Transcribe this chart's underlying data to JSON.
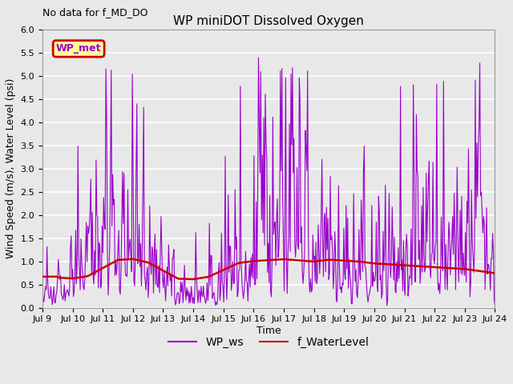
{
  "title": "WP miniDOT Dissolved Oxygen",
  "top_left_text": "No data for f_MD_DO",
  "ylabel": "Wind Speed (m/s), Water Level (psi)",
  "xlabel": "Time",
  "ylim": [
    0.0,
    6.0
  ],
  "yticks": [
    0.0,
    0.5,
    1.0,
    1.5,
    2.0,
    2.5,
    3.0,
    3.5,
    4.0,
    4.5,
    5.0,
    5.5,
    6.0
  ],
  "xtick_labels": [
    "Jul 9",
    "Jul 10",
    "Jul 11",
    "Jul 12",
    "Jul 13",
    "Jul 14",
    "Jul 15",
    "Jul 16",
    "Jul 17",
    "Jul 18",
    "Jul 19",
    "Jul 20",
    "Jul 21",
    "Jul 22",
    "Jul 23",
    "Jul 24"
  ],
  "legend_entries": [
    "WP_ws",
    "f_WaterLevel"
  ],
  "legend_colors": [
    "#9900cc",
    "#cc0000"
  ],
  "wp_met_box_facecolor": "#ffff99",
  "wp_met_box_edgecolor": "#cc0000",
  "wp_met_text_color": "#9900cc",
  "plot_bg_color": "#e8e8e8",
  "grid_color": "#ffffff",
  "line_color_ws": "#9900cc",
  "line_color_wl": "#cc0000",
  "fig_facecolor": "#e8e8e8"
}
